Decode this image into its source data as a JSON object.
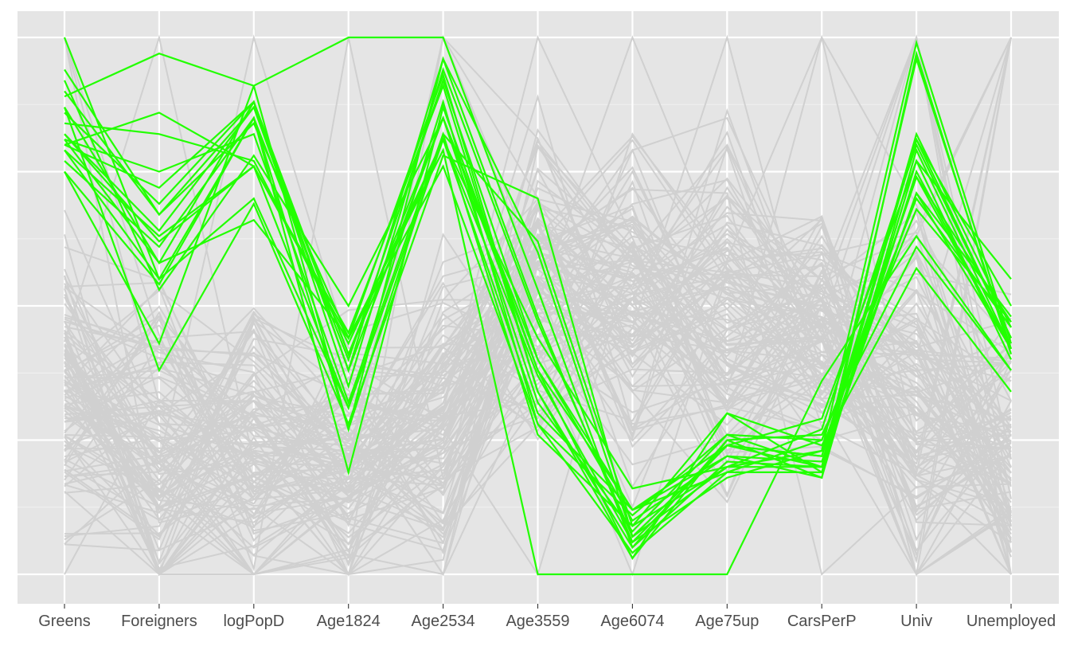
{
  "chart_data": {
    "type": "line",
    "subtype": "parallel-coordinates",
    "title": "",
    "xlabel": "",
    "ylabel": "",
    "categories": [
      "Greens",
      "Foreigners",
      "logPopD",
      "Age1824",
      "Age2534",
      "Age3559",
      "Age6074",
      "Age75up",
      "CarsPerP",
      "Univ",
      "Unemployed"
    ],
    "ylim": [
      0,
      1
    ],
    "y_grid_major": [
      0,
      0.25,
      0.5,
      0.75,
      1
    ],
    "y_tick_labels_visible": false,
    "grid": true,
    "legend": "none",
    "colors": {
      "panel_background": "#e5e5e5",
      "grid_major": "#ffffff",
      "grid_minor": "#f2f2f2",
      "background_lines": "#d0d0d0",
      "highlight_lines": "#22ff00",
      "axis_text": "#4d4d4d"
    },
    "background_series_note_count": 120,
    "highlighted_series": [
      {
        "values": [
          0.89,
          0.97,
          0.91,
          0.27,
          0.96,
          0.6,
          0.07,
          0.2,
          0.2,
          0.82,
          0.46
        ]
      },
      {
        "values": [
          0.86,
          0.69,
          0.88,
          0.35,
          0.94,
          0.47,
          0.07,
          0.24,
          0.2,
          0.81,
          0.44
        ]
      },
      {
        "values": [
          0.82,
          0.64,
          0.87,
          0.38,
          0.96,
          0.48,
          0.06,
          0.24,
          0.22,
          0.81,
          0.5
        ]
      },
      {
        "values": [
          0.75,
          0.54,
          0.85,
          0.4,
          0.92,
          0.4,
          0.1,
          0.22,
          0.21,
          0.71,
          0.42
        ]
      },
      {
        "values": [
          0.77,
          0.61,
          0.85,
          0.27,
          0.82,
          0.62,
          0.09,
          0.2,
          0.23,
          0.74,
          0.42
        ]
      },
      {
        "values": [
          0.8,
          0.72,
          0.88,
          0.41,
          0.85,
          0.4,
          0.12,
          0.19,
          0.19,
          0.77,
          0.4
        ]
      },
      {
        "values": [
          0.87,
          0.58,
          0.88,
          0.38,
          0.85,
          0.38,
          0.12,
          0.22,
          0.18,
          0.79,
          0.42
        ]
      },
      {
        "values": [
          0.81,
          0.75,
          0.82,
          0.32,
          0.82,
          0.26,
          0.09,
          0.3,
          0.19,
          0.75,
          0.42
        ]
      },
      {
        "values": [
          0.82,
          0.62,
          0.76,
          0.31,
          0.88,
          0.28,
          0.11,
          0.26,
          0.25,
          0.7,
          0.46
        ]
      },
      {
        "values": [
          0.94,
          0.67,
          0.87,
          0.41,
          0.81,
          0.3,
          0.12,
          0.24,
          0.22,
          0.74,
          0.47
        ]
      },
      {
        "values": [
          0.84,
          0.82,
          0.77,
          0.43,
          0.81,
          0.37,
          0.06,
          0.18,
          0.23,
          0.99,
          0.43
        ]
      },
      {
        "values": [
          0.8,
          0.86,
          0.76,
          0.45,
          0.91,
          0.34,
          0.05,
          0.21,
          0.2,
          0.96,
          0.42
        ]
      },
      {
        "values": [
          0.9,
          0.67,
          0.84,
          0.44,
          0.93,
          0.34,
          0.03,
          0.25,
          0.18,
          0.97,
          0.41
        ]
      },
      {
        "values": [
          0.92,
          0.53,
          0.78,
          0.5,
          0.85,
          0.32,
          0.08,
          0.26,
          0.2,
          0.71,
          0.48
        ]
      },
      {
        "values": [
          0.79,
          0.63,
          0.76,
          0.44,
          0.79,
          0.0,
          0.0,
          0.0,
          0.36,
          0.63,
          0.38
        ]
      },
      {
        "values": [
          0.81,
          0.58,
          0.66,
          0.44,
          0.76,
          0.28,
          0.04,
          0.19,
          0.25,
          0.68,
          0.47
        ]
      },
      {
        "values": [
          0.79,
          0.55,
          0.85,
          0.19,
          0.87,
          0.38,
          0.03,
          0.3,
          0.24,
          0.57,
          0.34
        ]
      },
      {
        "values": [
          1.0,
          0.55,
          0.7,
          0.31,
          0.81,
          0.44,
          0.16,
          0.2,
          0.27,
          0.8,
          0.44
        ]
      },
      {
        "values": [
          0.87,
          0.38,
          0.69,
          0.28,
          0.78,
          0.7,
          0.07,
          0.24,
          0.29,
          0.77,
          0.55
        ]
      },
      {
        "values": [
          0.75,
          0.43,
          0.91,
          1.0,
          1.0,
          0.53,
          0.05,
          0.25,
          0.26,
          0.61,
          0.38
        ]
      }
    ]
  }
}
